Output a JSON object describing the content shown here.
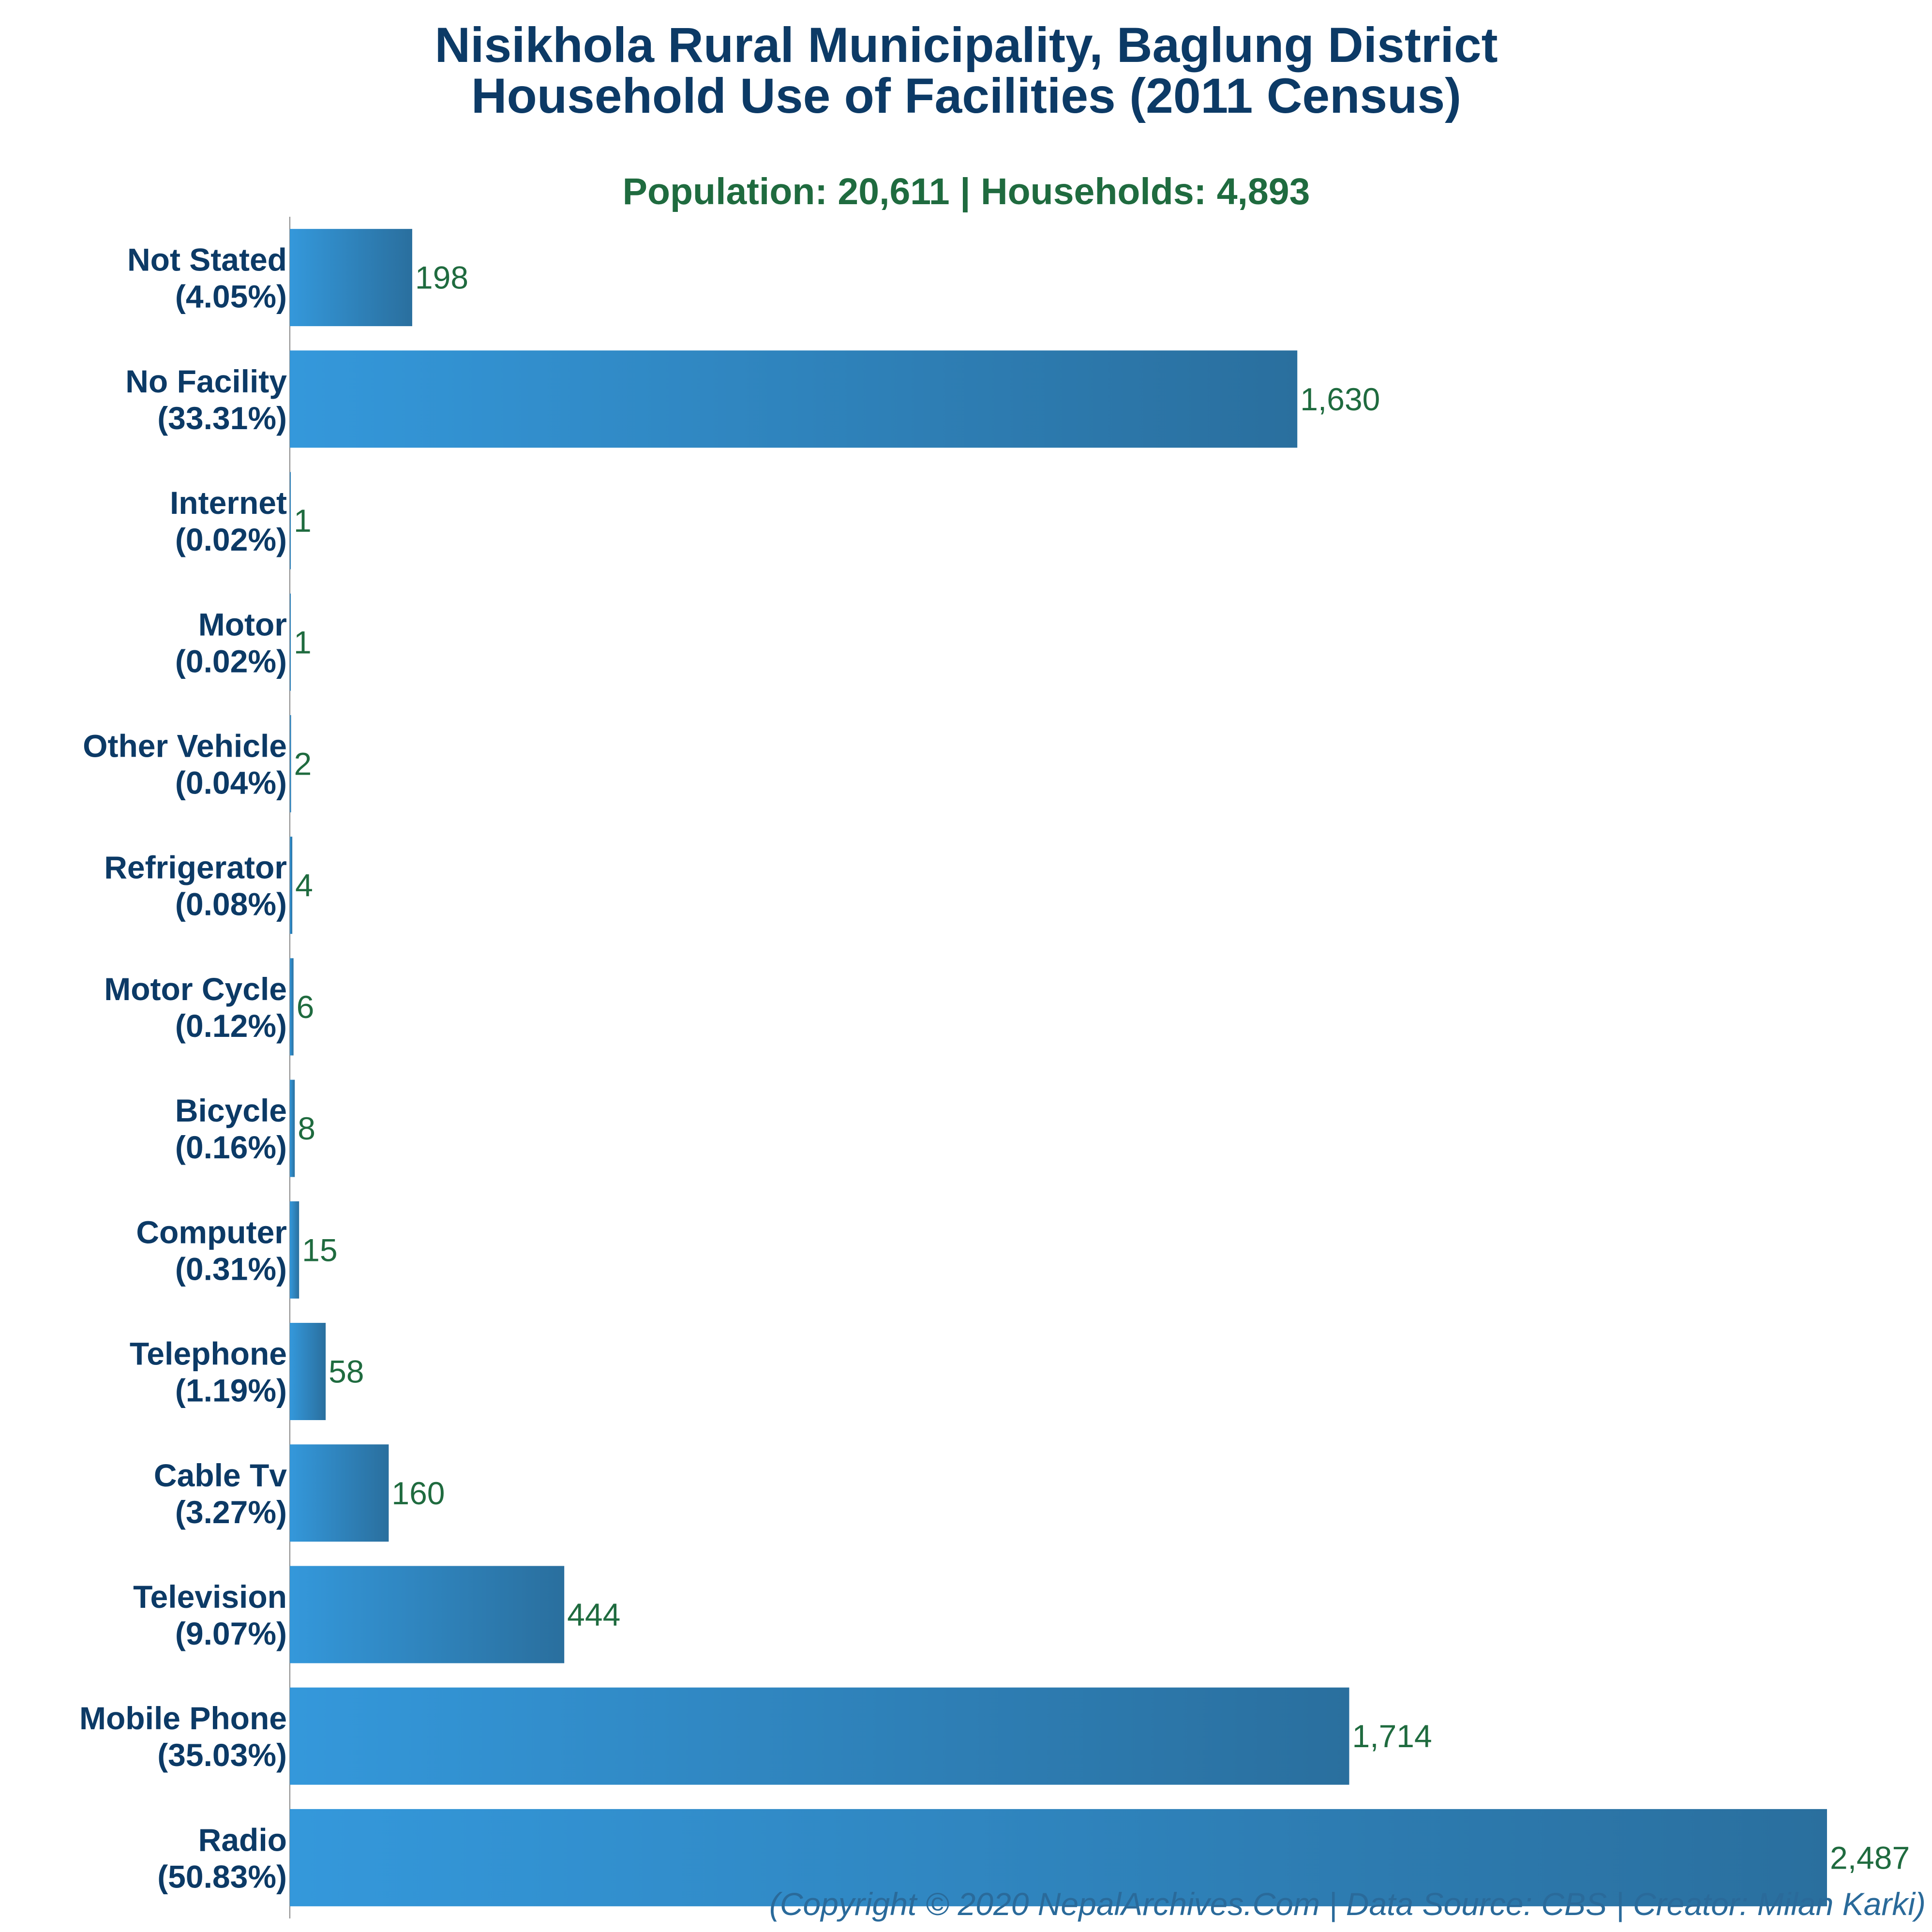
{
  "chart_data": {
    "type": "bar",
    "orientation": "horizontal",
    "title_line1": "Nisikhola Rural Municipality, Baglung District",
    "title_line2": "Household Use of Facilities (2011 Census)",
    "subtitle": "Population: 20,611 | Households: 4,893",
    "footer": "(Copyright © 2020 NepalArchives.Com | Data Source: CBS | Creator: Milan Karki)",
    "xlim": [
      0,
      2487
    ],
    "grid": false,
    "legend": "none",
    "colors": {
      "bar_start": "#3498db",
      "bar_end": "#2a6f9e",
      "title": "#0c3a66",
      "subtitle": "#1f6b3f",
      "value_label": "#1f6b3f",
      "footer": "#2a6a9a",
      "axis": "#888888"
    },
    "bars": [
      {
        "name": "Not Stated",
        "pct": "(4.05%)",
        "value": 198,
        "value_label": "198"
      },
      {
        "name": "No Facility",
        "pct": "(33.31%)",
        "value": 1630,
        "value_label": "1,630"
      },
      {
        "name": "Internet",
        "pct": "(0.02%)",
        "value": 1,
        "value_label": "1"
      },
      {
        "name": "Motor",
        "pct": "(0.02%)",
        "value": 1,
        "value_label": "1"
      },
      {
        "name": "Other Vehicle",
        "pct": "(0.04%)",
        "value": 2,
        "value_label": "2"
      },
      {
        "name": "Refrigerator",
        "pct": "(0.08%)",
        "value": 4,
        "value_label": "4"
      },
      {
        "name": "Motor Cycle",
        "pct": "(0.12%)",
        "value": 6,
        "value_label": "6"
      },
      {
        "name": "Bicycle",
        "pct": "(0.16%)",
        "value": 8,
        "value_label": "8"
      },
      {
        "name": "Computer",
        "pct": "(0.31%)",
        "value": 15,
        "value_label": "15"
      },
      {
        "name": "Telephone",
        "pct": "(1.19%)",
        "value": 58,
        "value_label": "58"
      },
      {
        "name": "Cable Tv",
        "pct": "(3.27%)",
        "value": 160,
        "value_label": "160"
      },
      {
        "name": "Television",
        "pct": "(9.07%)",
        "value": 444,
        "value_label": "444"
      },
      {
        "name": "Mobile Phone",
        "pct": "(35.03%)",
        "value": 1714,
        "value_label": "1,714"
      },
      {
        "name": "Radio",
        "pct": "(50.83%)",
        "value": 2487,
        "value_label": "2,487"
      }
    ]
  }
}
